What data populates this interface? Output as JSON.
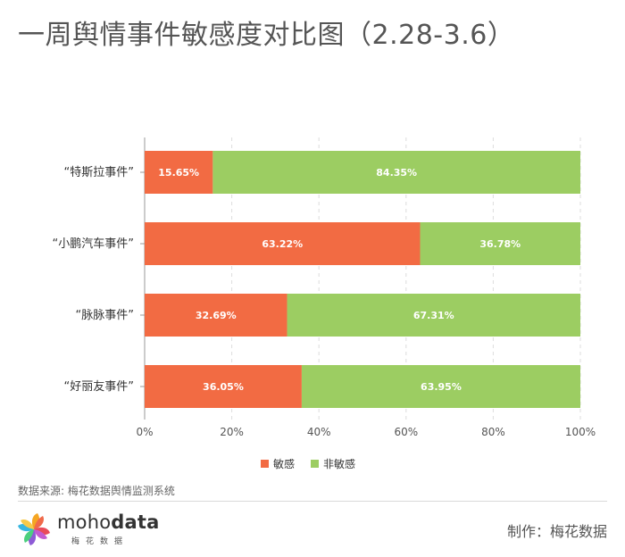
{
  "title": "一周舆情事件敏感度对比图（2.28-3.6）",
  "source": "数据来源: 梅花数据舆情监测系统",
  "maker": "制作：梅花数据",
  "logo": {
    "word_light": "moho",
    "word_bold": "data",
    "sub": "梅花数据"
  },
  "colors": {
    "sensitive": "#f26b43",
    "non_sensitive": "#9ccd62",
    "grid": "#dddddd"
  },
  "chart_data": {
    "type": "bar",
    "orientation": "horizontal",
    "stacked": true,
    "categories": [
      "“特斯拉事件”",
      "“小鹏汽车事件”",
      "“脉脉事件”",
      "“好丽友事件”"
    ],
    "series": [
      {
        "name": "敏感",
        "values": [
          15.65,
          63.22,
          32.69,
          36.05
        ],
        "labels": [
          "15.65%",
          "63.22%",
          "32.69%",
          "36.05%"
        ]
      },
      {
        "name": "非敏感",
        "values": [
          84.35,
          36.78,
          67.31,
          63.95
        ],
        "labels": [
          "84.35%",
          "36.78%",
          "67.31%",
          "63.95%"
        ]
      }
    ],
    "xlim": [
      0,
      100
    ],
    "xticks": [
      "0%",
      "20%",
      "40%",
      "60%",
      "80%",
      "100%"
    ],
    "grid": true,
    "legend_position": "bottom-center"
  }
}
